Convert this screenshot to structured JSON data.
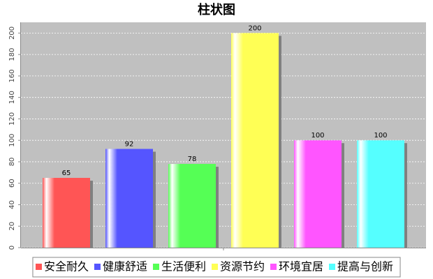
{
  "chart_data": {
    "type": "bar",
    "title": "柱状图",
    "categories": [
      null
    ],
    "series": [
      {
        "name": "安全耐久",
        "color": "#ff5555",
        "values": [
          65
        ]
      },
      {
        "name": "健康舒适",
        "color": "#5555ff",
        "values": [
          92
        ]
      },
      {
        "name": "生活便利",
        "color": "#55ff55",
        "values": [
          78
        ]
      },
      {
        "name": "资源节约",
        "color": "#ffff55",
        "values": [
          200
        ]
      },
      {
        "name": "环境宜居",
        "color": "#ff55ff",
        "values": [
          100
        ]
      },
      {
        "name": "提高与创新",
        "color": "#55ffff",
        "values": [
          100
        ]
      }
    ],
    "ylim": [
      0,
      210
    ],
    "yticks": [
      0,
      20,
      40,
      60,
      80,
      100,
      120,
      140,
      160,
      180,
      200
    ],
    "grid": true,
    "legend": "bottom",
    "plot_background": "#c0c0c0"
  }
}
